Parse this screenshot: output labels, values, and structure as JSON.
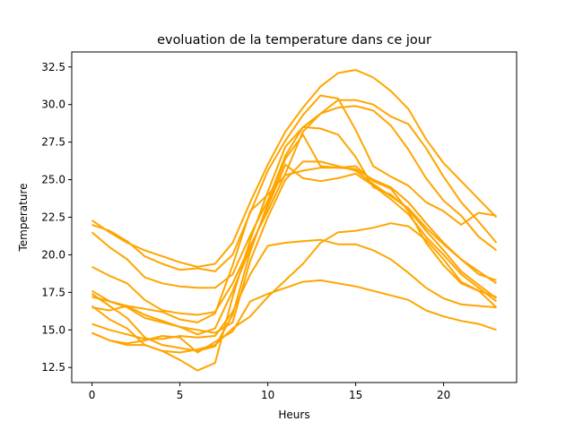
{
  "chart_data": {
    "type": "line",
    "title": "evoluation de la temperature dans ce jour",
    "xlabel": "Heurs",
    "ylabel": "Temperature",
    "xlim": [
      -1.15,
      24.15
    ],
    "ylim": [
      11.5,
      33.5
    ],
    "xticks": [
      0,
      5,
      10,
      15,
      20
    ],
    "yticks": [
      12.5,
      15.0,
      17.5,
      20.0,
      22.5,
      25.0,
      27.5,
      30.0,
      32.5
    ],
    "ytick_labels": [
      "12.5",
      "15.0",
      "17.5",
      "20.0",
      "22.5",
      "25.0",
      "27.5",
      "30.0",
      "32.5"
    ],
    "xtick_labels": [
      "0",
      "5",
      "10",
      "15",
      "20"
    ],
    "grid": false,
    "line_color": "#FFA500",
    "x": [
      0,
      1,
      2,
      3,
      4,
      5,
      6,
      7,
      8,
      9,
      10,
      11,
      12,
      13,
      14,
      15,
      16,
      17,
      18,
      19,
      20,
      21,
      22,
      23
    ],
    "series": [
      {
        "values": [
          22.3,
          21.5,
          20.8,
          20.3,
          19.9,
          19.5,
          19.2,
          19.4,
          20.8,
          23.5,
          26.0,
          28.2,
          29.8,
          31.2,
          32.1,
          32.3,
          31.8,
          30.9,
          29.7,
          27.7,
          26.1,
          24.9,
          23.7,
          22.5
        ]
      },
      {
        "values": [
          22.0,
          21.6,
          20.9,
          19.9,
          19.4,
          19.0,
          19.1,
          18.9,
          20.0,
          22.8,
          25.6,
          27.6,
          29.3,
          30.6,
          30.4,
          28.3,
          25.9,
          25.2,
          24.6,
          23.5,
          22.9,
          22.0,
          22.8,
          22.6
        ]
      },
      {
        "values": [
          21.5,
          20.5,
          19.7,
          18.5,
          18.1,
          17.9,
          17.8,
          17.8,
          18.7,
          21.3,
          23.6,
          26.6,
          28.5,
          29.4,
          30.3,
          30.3,
          30.0,
          29.2,
          28.7,
          27.1,
          25.2,
          23.5,
          22.2,
          20.8
        ]
      },
      {
        "values": [
          19.2,
          18.6,
          18.1,
          17.0,
          16.3,
          16.1,
          16.0,
          16.2,
          18.1,
          20.6,
          22.9,
          25.4,
          28.2,
          29.4,
          29.8,
          29.9,
          29.6,
          28.6,
          27.0,
          25.1,
          23.6,
          22.6,
          21.2,
          20.3
        ]
      },
      {
        "values": [
          17.6,
          16.9,
          16.5,
          15.8,
          15.5,
          15.2,
          15.0,
          14.8,
          15.5,
          19.6,
          22.5,
          25.0,
          26.2,
          26.2,
          25.9,
          25.6,
          24.7,
          23.9,
          23.1,
          21.8,
          20.7,
          19.7,
          18.9,
          18.1
        ]
      },
      {
        "values": [
          17.4,
          16.6,
          15.8,
          14.5,
          14.0,
          13.8,
          13.6,
          13.9,
          16.0,
          20.2,
          23.4,
          26.4,
          28.0,
          25.9,
          25.8,
          25.7,
          25.0,
          24.5,
          23.5,
          22.1,
          20.8,
          19.7,
          18.7,
          18.3
        ]
      },
      {
        "values": [
          16.6,
          15.7,
          15.1,
          14.0,
          13.6,
          13.0,
          12.3,
          12.8,
          17.2,
          21.0,
          24.2,
          27.2,
          28.5,
          28.4,
          28.0,
          26.5,
          24.5,
          24.0,
          23.0,
          21.6,
          20.3,
          18.9,
          18.0,
          17.1
        ]
      },
      {
        "values": [
          17.2,
          16.9,
          16.6,
          16.0,
          15.6,
          15.2,
          14.7,
          15.1,
          17.6,
          20.4,
          23.2,
          26.0,
          25.1,
          24.9,
          25.1,
          25.4,
          24.6,
          23.7,
          22.7,
          21.2,
          20.0,
          18.7,
          17.8,
          16.9
        ]
      },
      {
        "values": [
          15.4,
          15.0,
          14.7,
          14.4,
          14.4,
          14.6,
          14.5,
          14.6,
          16.2,
          18.7,
          20.6,
          20.8,
          20.9,
          21.0,
          20.7,
          20.7,
          20.3,
          19.7,
          18.8,
          17.8,
          17.1,
          16.7,
          16.6,
          16.5
        ]
      },
      {
        "values": [
          14.8,
          14.3,
          14.1,
          14.3,
          14.6,
          14.5,
          13.5,
          14.2,
          14.9,
          16.9,
          17.4,
          17.8,
          18.2,
          18.3,
          18.1,
          17.9,
          17.6,
          17.3,
          17.0,
          16.3,
          15.9,
          15.6,
          15.4,
          15.0
        ]
      },
      {
        "values": [
          14.8,
          14.3,
          14.0,
          14.0,
          13.6,
          13.5,
          13.7,
          14.0,
          15.1,
          15.9,
          17.2,
          18.3,
          19.4,
          20.8,
          21.5,
          21.6,
          21.8,
          22.1,
          21.9,
          21.0,
          19.7,
          18.2,
          17.6,
          16.5
        ]
      },
      {
        "values": [
          16.5,
          16.3,
          16.6,
          16.4,
          16.2,
          15.7,
          15.5,
          16.1,
          19.3,
          22.9,
          24.0,
          25.3,
          25.6,
          25.8,
          25.8,
          25.9,
          24.9,
          24.4,
          22.9,
          20.8,
          19.3,
          18.1,
          17.6,
          17.2
        ]
      }
    ]
  }
}
